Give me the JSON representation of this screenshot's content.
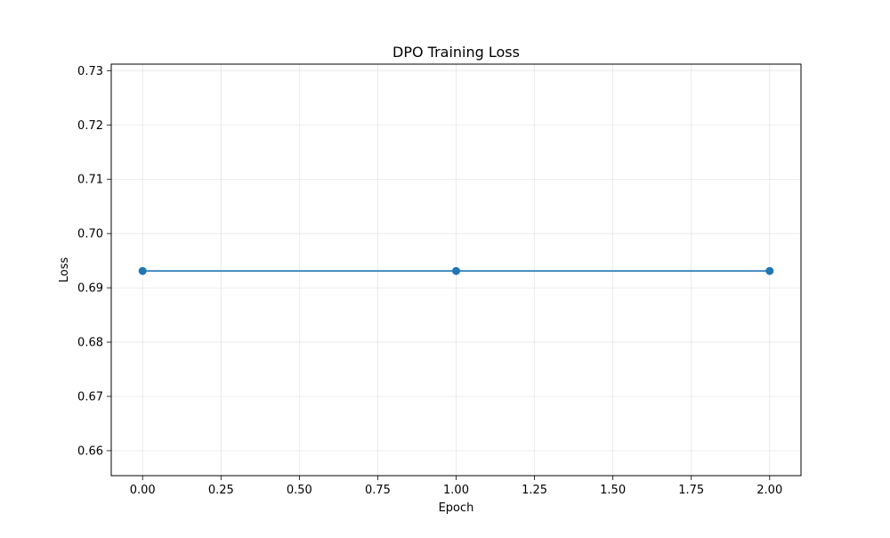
{
  "chart_data": {
    "type": "line",
    "title": "DPO Training Loss",
    "xlabel": "Epoch",
    "ylabel": "Loss",
    "x": [
      0,
      1,
      2
    ],
    "series": [
      {
        "values": [
          0.6931,
          0.6931,
          0.6931
        ]
      }
    ],
    "xlim": [
      -0.1,
      2.1
    ],
    "ylim": [
      0.6554,
      0.7312
    ],
    "xticks": [
      0.0,
      0.25,
      0.5,
      0.75,
      1.0,
      1.25,
      1.5,
      1.75,
      2.0
    ],
    "xtick_labels": [
      "0.00",
      "0.25",
      "0.50",
      "0.75",
      "1.00",
      "1.25",
      "1.50",
      "1.75",
      "2.00"
    ],
    "yticks": [
      0.66,
      0.67,
      0.68,
      0.69,
      0.7,
      0.71,
      0.72,
      0.73
    ],
    "ytick_labels": [
      "0.66",
      "0.67",
      "0.68",
      "0.69",
      "0.70",
      "0.71",
      "0.72",
      "0.73"
    ],
    "grid": true,
    "line_color": "#1f77b4",
    "marker": "circle"
  }
}
